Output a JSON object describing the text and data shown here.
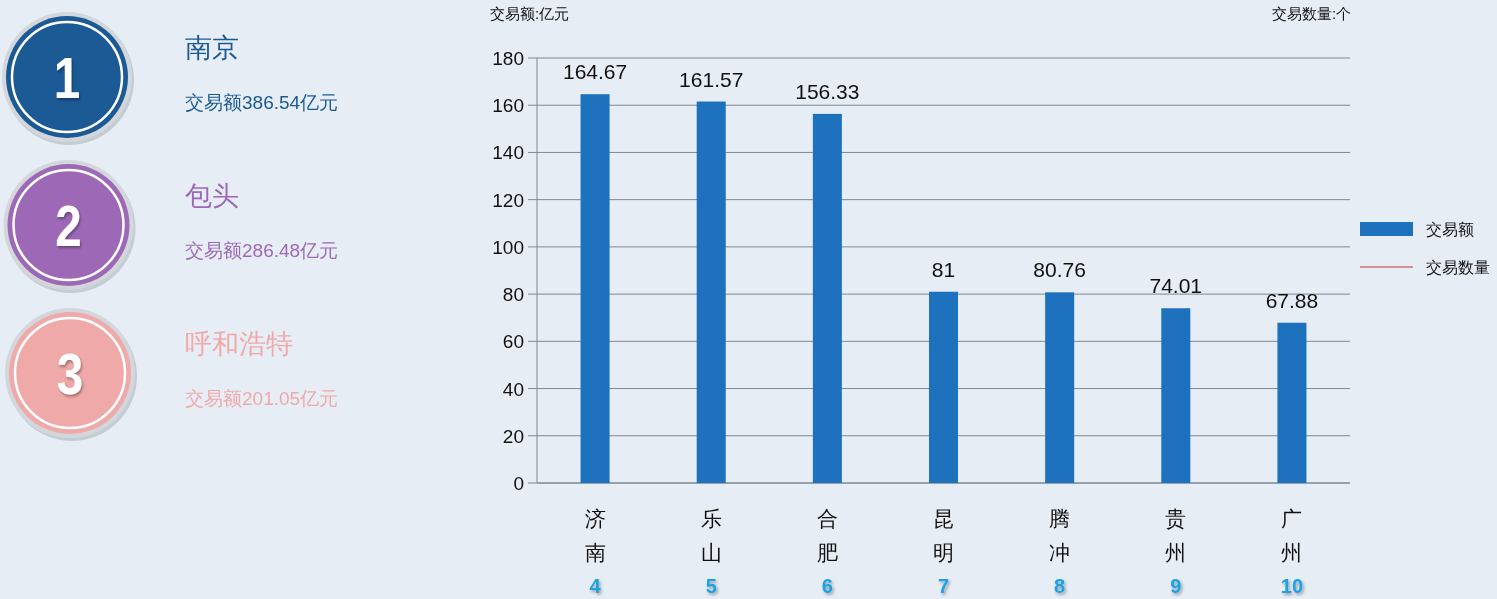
{
  "chart_data": [
    {
      "type": "other",
      "categories": [
        "南京",
        "包头",
        "呼和浩特"
      ],
      "value_labels": [
        "交易额386.54亿元",
        "交易额286.48亿元",
        "交易额201.05亿元"
      ],
      "colors": [
        "#1b5a94",
        "#9d69b7",
        "#f0a9a9"
      ],
      "annotations": [
        "1",
        "2",
        "3"
      ]
    },
    {
      "type": "bar",
      "ylabel": "交易额:亿元",
      "y2label": "交易数量:个",
      "categories": [
        "济南",
        "乐山",
        "合肥",
        "昆明",
        "腾冲",
        "贵州",
        "广州"
      ],
      "series": [
        {
          "name": "交易额",
          "type": "bar",
          "color": "#1e72bd",
          "values": [
            164.67,
            161.57,
            156.33,
            81,
            80.76,
            74.01,
            67.88
          ]
        },
        {
          "name": "交易数量",
          "type": "line",
          "color": "#c23531",
          "values": [
            null,
            null,
            null,
            null,
            null,
            null,
            null
          ]
        }
      ],
      "ylim": [
        0,
        180
      ],
      "yticks": [
        0,
        20,
        40,
        60,
        80,
        100,
        120,
        140,
        160,
        180
      ],
      "grid": "y",
      "legend": "right",
      "data_labels": true,
      "annotations": [
        "4",
        "5",
        "6",
        "7",
        "8",
        "9",
        "10"
      ]
    }
  ]
}
